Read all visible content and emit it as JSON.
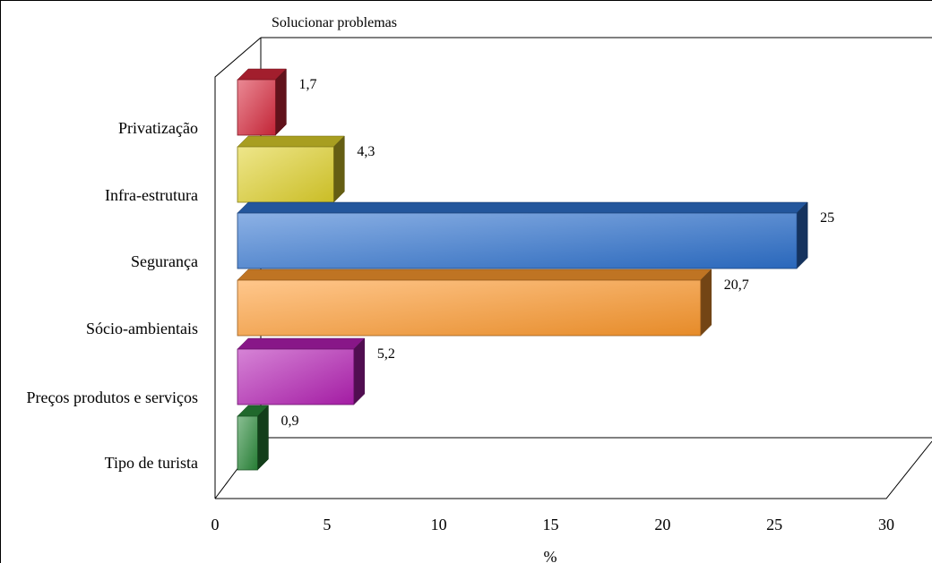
{
  "chart_data": {
    "type": "bar",
    "orientation": "horizontal",
    "title": "Solucionar problemas",
    "xlabel": "%",
    "ylabel": "",
    "xlim": [
      0,
      30
    ],
    "xticks": [
      "0",
      "5",
      "10",
      "15",
      "20",
      "25",
      "30"
    ],
    "grid": false,
    "categories": [
      "Privatização",
      "Infra-estrutura",
      "Segurança",
      "Sócio-ambientais",
      "Preços produtos e serviços",
      "Tipo de turista"
    ],
    "values": [
      1.7,
      4.3,
      25,
      20.7,
      5.2,
      0.9
    ],
    "data_labels": [
      "1,7",
      "4,3",
      "25",
      "20,7",
      "5,2",
      "0,9"
    ],
    "colors": [
      "#d8283c",
      "#e0d22a",
      "#2e72d0",
      "#ff9a2e",
      "#b51fb5",
      "#2a8a3a"
    ]
  }
}
